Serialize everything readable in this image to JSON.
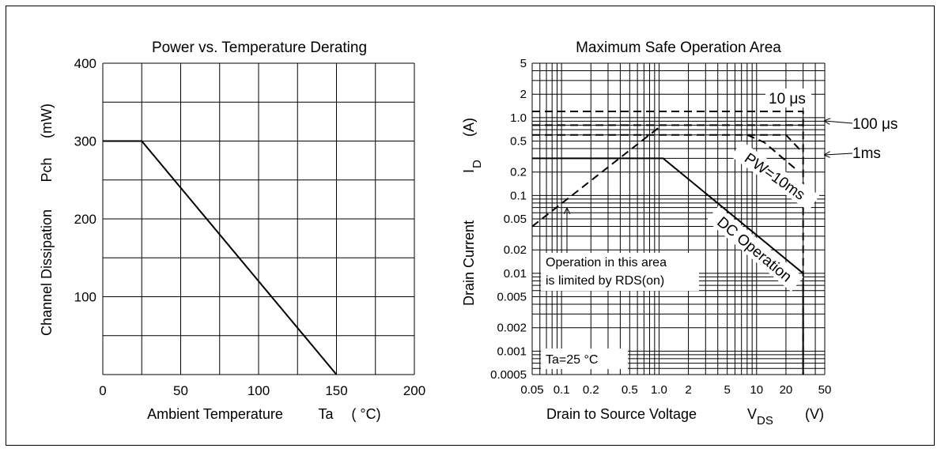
{
  "chart_data": [
    {
      "type": "line",
      "title": "Power vs. Temperature Derating",
      "xlabel": "Ambient Temperature",
      "xlabel_symbol": "Ta",
      "xlabel_unit": "( °C)",
      "ylabel": "Channel Dissipation",
      "ylabel_symbol": "Pch",
      "ylabel_unit": "(mW)",
      "xlim": [
        0,
        200
      ],
      "ylim": [
        0,
        400
      ],
      "x_ticks": [
        "0",
        "50",
        "100",
        "150",
        "200"
      ],
      "y_ticks": [
        "100",
        "200",
        "300",
        "400"
      ],
      "grid": true,
      "series": [
        {
          "x": [
            0,
            25,
            150
          ],
          "y": [
            300,
            300,
            0
          ]
        }
      ]
    },
    {
      "type": "line",
      "title": "Maximum Safe Operation Area",
      "xlabel": "Drain to Source Voltage",
      "xlabel_symbol": "V",
      "xlabel_symbol_sub": "DS",
      "xlabel_unit": "(V)",
      "ylabel": "Drain Current",
      "ylabel_symbol": "I",
      "ylabel_symbol_sub": "D",
      "ylabel_unit": "(A)",
      "x_scale": "log",
      "y_scale": "log",
      "xlim": [
        0.05,
        50
      ],
      "ylim": [
        0.0005,
        5
      ],
      "x_ticks": [
        "0.05",
        "0.1",
        "0.2",
        "0.5",
        "1.0",
        "2",
        "5",
        "10",
        "20",
        "50"
      ],
      "y_ticks": [
        "0.0005",
        "0.001",
        "0.002",
        "0.005",
        "0.01",
        "0.02",
        "0.05",
        "0.1",
        "0.2",
        "0.5",
        "1.0",
        "2",
        "5"
      ],
      "grid": true,
      "series": [
        {
          "name": "DC Operation",
          "style": "solid",
          "x": [
            0.05,
            1.1,
            30,
            30
          ],
          "y": [
            0.3,
            0.3,
            0.01,
            0.0005
          ]
        },
        {
          "name": "10 μs",
          "style": "dashed",
          "x": [
            0.05,
            30,
            30
          ],
          "y": [
            1.2,
            1.2,
            0.0005
          ]
        },
        {
          "name": "100 μs",
          "style": "dashed",
          "x": [
            0.05,
            30
          ],
          "y": [
            0.8,
            0.8
          ]
        },
        {
          "name": "1ms",
          "style": "dashed",
          "x": [
            0.05,
            20,
            30
          ],
          "y": [
            0.6,
            0.6,
            0.35
          ]
        },
        {
          "name": "PW=10ms",
          "style": "dashed",
          "x": [
            8,
            12,
            25
          ],
          "y": [
            0.6,
            0.48,
            0.22
          ]
        },
        {
          "name": "RDS(on) limit",
          "style": "dashed",
          "x": [
            0.05,
            1.0
          ],
          "y": [
            0.04,
            0.75
          ]
        }
      ],
      "annotations": {
        "us10": "10 μs",
        "us100": "100 μs",
        "ms1": "1ms",
        "pw10": "PW=10ms",
        "dc": "DC Operation",
        "rds_line1": "Operation in this area",
        "rds_line2": "is limited by RDS(on)",
        "ta": "Ta=25 °C"
      }
    }
  ]
}
